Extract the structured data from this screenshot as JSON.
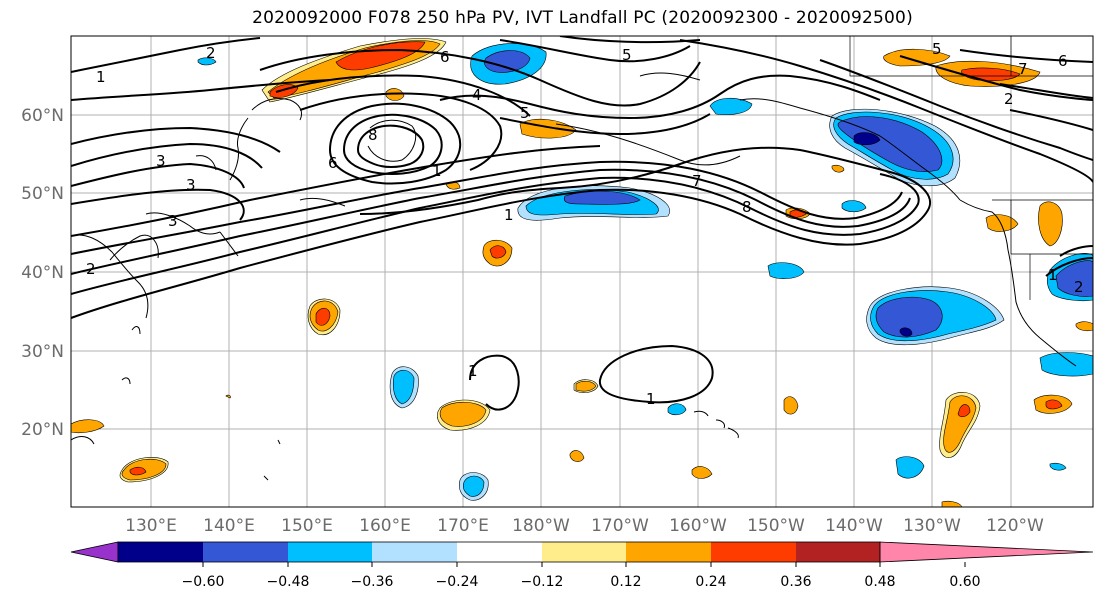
{
  "title": "2020092000 F078 250 hPa PV, IVT Landfall PC (2020092300 - 2020092500)",
  "map": {
    "lat_labels": [
      "60°N",
      "50°N",
      "40°N",
      "30°N",
      "20°N"
    ],
    "lon_labels": [
      "130°E",
      "140°E",
      "150°E",
      "160°E",
      "170°E",
      "180°W",
      "170°W",
      "160°W",
      "150°W",
      "140°W",
      "130°W",
      "120°W"
    ],
    "contour_labels": [
      "1",
      "2",
      "3",
      "3",
      "3",
      "4",
      "5",
      "5",
      "6",
      "6",
      "7",
      "8",
      "8",
      "1",
      "1",
      "1",
      "2",
      "2",
      "5",
      "6",
      "7",
      "2",
      "1",
      "1"
    ]
  },
  "colorbar": {
    "tick_labels": [
      "−0.60",
      "−0.48",
      "−0.36",
      "−0.24",
      "−0.12",
      "0.12",
      "0.24",
      "0.36",
      "0.48",
      "0.60"
    ],
    "colors": [
      "#9932cc",
      "#00008b",
      "#3457d5",
      "#00bfff",
      "#b2e1ff",
      "#ffffff",
      "#ffec8b",
      "#ffa500",
      "#ff3c00",
      "#b22222",
      "#ff85aa"
    ]
  }
}
